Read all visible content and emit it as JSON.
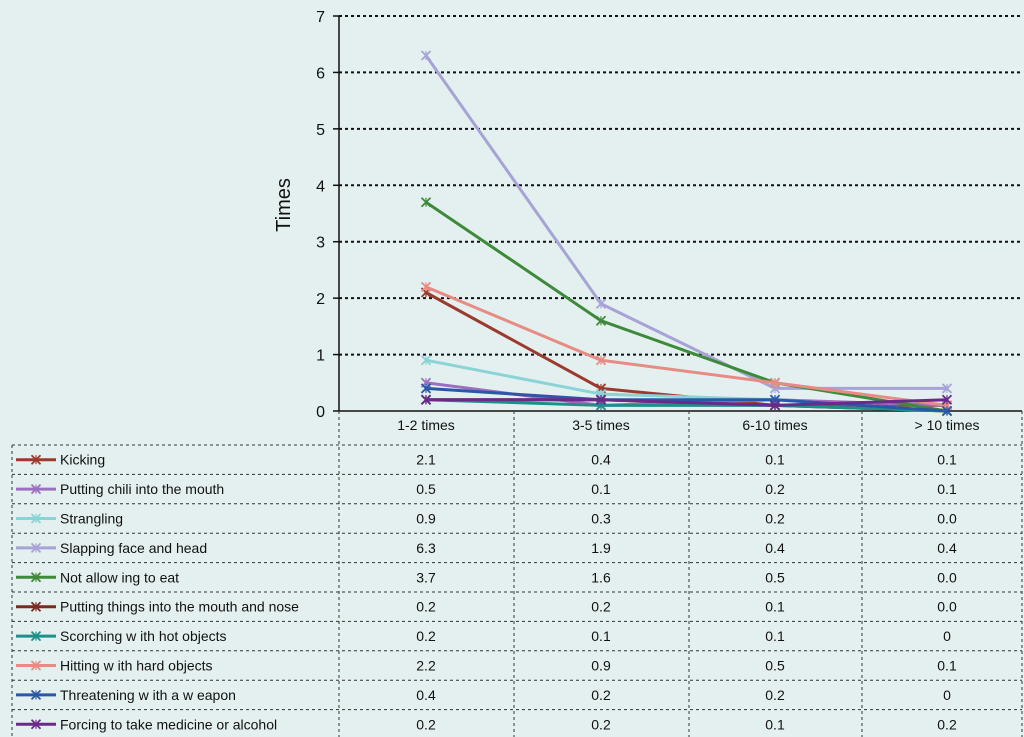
{
  "chart_data": {
    "type": "line",
    "ylabel": "Times",
    "ylim": [
      0,
      7
    ],
    "y_ticks": [
      0,
      1,
      2,
      3,
      4,
      5,
      6,
      7
    ],
    "grid": true,
    "legend_placement": "data table below chart",
    "categories": [
      "1-2 times",
      "3-5 times",
      "6-10 times",
      "> 10 times"
    ],
    "series": [
      {
        "name": "Kicking",
        "color": "#9b3b2f",
        "values": [
          2.1,
          0.4,
          0.1,
          0.1
        ],
        "labels": [
          "2.1",
          "0.4",
          "0.1",
          "0.1"
        ]
      },
      {
        "name": "Putting chili into the mouth",
        "color": "#9c6fc0",
        "values": [
          0.5,
          0.1,
          0.2,
          0.1
        ],
        "labels": [
          "0.5",
          "0.1",
          "0.2",
          "0.1"
        ]
      },
      {
        "name": "Strangling",
        "color": "#8ad3d6",
        "values": [
          0.9,
          0.3,
          0.2,
          0.0
        ],
        "labels": [
          "0.9",
          "0.3",
          "0.2",
          "0.0"
        ]
      },
      {
        "name": "Slapping face and head",
        "color": "#a7a3d6",
        "values": [
          6.3,
          1.9,
          0.4,
          0.4
        ],
        "labels": [
          "6.3",
          "1.9",
          "0.4",
          "0.4"
        ]
      },
      {
        "name": "Not allow ing to eat",
        "color": "#3e8a3a",
        "values": [
          3.7,
          1.6,
          0.5,
          0.0
        ],
        "labels": [
          "3.7",
          "1.6",
          "0.5",
          "0.0"
        ]
      },
      {
        "name": "Putting things into the mouth and nose",
        "color": "#7a2a1f",
        "values": [
          0.2,
          0.2,
          0.1,
          0.0
        ],
        "labels": [
          "0.2",
          "0.2",
          "0.1",
          "0.0"
        ]
      },
      {
        "name": "Scorching w ith hot objects",
        "color": "#1f8f8a",
        "values": [
          0.2,
          0.1,
          0.1,
          0
        ],
        "labels": [
          "0.2",
          "0.1",
          "0.1",
          "0"
        ]
      },
      {
        "name": "Hitting w ith hard objects",
        "color": "#e88b84",
        "values": [
          2.2,
          0.9,
          0.5,
          0.1
        ],
        "labels": [
          "2.2",
          "0.9",
          "0.5",
          "0.1"
        ]
      },
      {
        "name": "Threatening w ith a w eapon",
        "color": "#2a58a8",
        "values": [
          0.4,
          0.2,
          0.2,
          0
        ],
        "labels": [
          "0.4",
          "0.2",
          "0.2",
          "0"
        ]
      },
      {
        "name": "Forcing to take medicine or alcohol",
        "color": "#6a2a8a",
        "values": [
          0.2,
          0.2,
          0.1,
          0.2
        ],
        "labels": [
          "0.2",
          "0.2",
          "0.1",
          "0.2"
        ]
      }
    ]
  }
}
